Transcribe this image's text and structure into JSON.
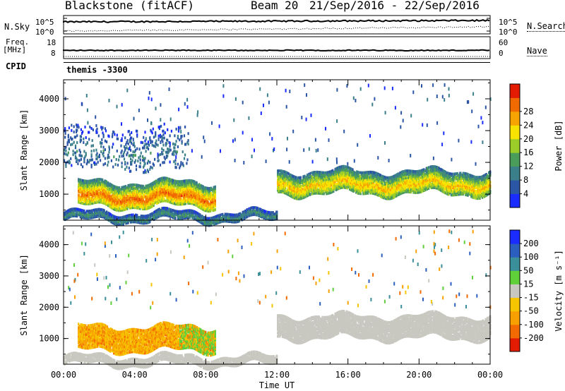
{
  "header": {
    "station": "Blackstone (fitACF)",
    "beam": "Beam 20",
    "date_range": "21/Sep/2016 - 22/Sep/2016",
    "program": "themis -3300"
  },
  "aux_panels": {
    "nsky_label": "N.Sky",
    "nsky_ticks": [
      "10^5",
      "10^0"
    ],
    "nsearch_label": "N.Search",
    "nsearch_ticks": [
      "10^5",
      "10^0"
    ],
    "freq_label": "Freq.",
    "freq_unit": "[MHz]",
    "freq_ticks": [
      "18",
      "8"
    ],
    "nave_label": "Nave",
    "nave_ticks": [
      "60",
      "0"
    ],
    "cpid_label": "CPID"
  },
  "chart_data": [
    {
      "type": "heatmap",
      "name": "power",
      "xlabel": "Time UT",
      "ylabel": "Slant Range [km]",
      "xlim": [
        0,
        24
      ],
      "ylim": [
        180,
        4600
      ],
      "x_ticks": [
        "00:00",
        "04:00",
        "08:00",
        "12:00",
        "16:00",
        "20:00",
        "00:00"
      ],
      "y_ticks": [
        "1000",
        "2000",
        "3000",
        "4000"
      ],
      "colorbar": {
        "label": "Power [dB]",
        "ticks": [
          "4",
          "8",
          "12",
          "16",
          "20",
          "24",
          "28"
        ],
        "colors": [
          "#1a2cff",
          "#2b55a5",
          "#3a7f8a",
          "#4a9c5a",
          "#9ccc28",
          "#f7e200",
          "#f7a300",
          "#f06a00",
          "#e31c00"
        ]
      },
      "features": [
        {
          "desc": "strong echo band",
          "t": [
            0.8,
            8.5
          ],
          "range": [
            650,
            1400
          ],
          "power": 24
        },
        {
          "desc": "ionospheric band",
          "t": [
            12.0,
            24.0
          ],
          "range": [
            1050,
            1750
          ],
          "power": 20
        },
        {
          "desc": "ground/near scatter",
          "t": [
            0.0,
            12.0
          ],
          "range": [
            200,
            450
          ],
          "power": 10
        },
        {
          "desc": "sparse far echoes",
          "t": [
            0.0,
            7.0
          ],
          "range": [
            1800,
            3100
          ],
          "power": 8
        }
      ]
    },
    {
      "type": "heatmap",
      "name": "velocity",
      "xlabel": "Time UT",
      "ylabel": "Slant Range [km]",
      "xlim": [
        0,
        24
      ],
      "ylim": [
        180,
        4600
      ],
      "x_ticks": [
        "00:00",
        "04:00",
        "08:00",
        "12:00",
        "16:00",
        "20:00",
        "00:00"
      ],
      "y_ticks": [
        "1000",
        "2000",
        "3000",
        "4000"
      ],
      "colorbar": {
        "label": "Velocity [m s⁻¹]",
        "ticks": [
          "200",
          "100",
          "50",
          "15",
          "-15",
          "-50",
          "-100",
          "-200"
        ],
        "colors": [
          "#1a2cff",
          "#2b5fbf",
          "#3a8f9a",
          "#5fcf3a",
          "#c8c8c0",
          "#f7c400",
          "#f7a000",
          "#f26a00",
          "#e31c00"
        ]
      },
      "features": [
        {
          "desc": "negative velocity band",
          "t": [
            0.8,
            8.5
          ],
          "range": [
            650,
            1400
          ],
          "velocity": -50
        },
        {
          "desc": "near-zero band",
          "t": [
            12.0,
            24.0
          ],
          "range": [
            1050,
            1750
          ],
          "velocity": 0
        },
        {
          "desc": "ground scatter",
          "t": [
            0.0,
            12.0
          ],
          "range": [
            200,
            450
          ],
          "velocity": 0
        }
      ]
    }
  ]
}
